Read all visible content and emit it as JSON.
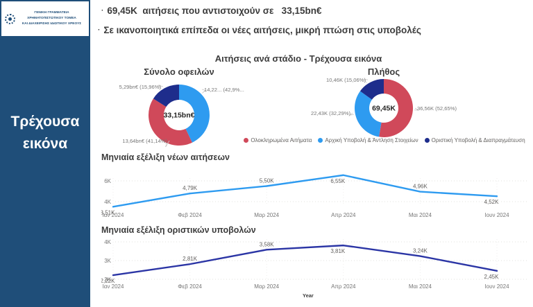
{
  "logo": {
    "line1": "ΓΕΝΙΚΗ ΓΡΑΜΜΑΤΕΙΑ ΧΡΗΜΑΤΟΠΙΣΤΩΤΙΚΟΥ ΤΟΜΕΑ",
    "line2": "ΚΑΙ ΔΙΑΧΕΙΡΙΣΗΣ ΙΔΙΩΤΙΚΟΥ ΧΡΕΟΥΣ"
  },
  "sidebar": {
    "label": "Τρέχουσα εικόνα"
  },
  "header": {
    "bullet1": "69,45K  αιτήσεις που αντιστοιχούν σε   33,15bn€",
    "bullet2": "Σε ικανοποιητικά επίπεδα οι νέες αιτήσεις, μικρή πτώση στις υποβολές"
  },
  "section_title": "Αιτήσεις ανά στάδιο - Τρέχουσα εικόνα",
  "colors": {
    "red": "#D0495A",
    "blue": "#2E9BF0",
    "navy": "#1E2D8C",
    "navy_line": "#2B35A5",
    "sidebar": "#1F4E79",
    "grid": "#E1E0DE",
    "tick": "#757575",
    "data_label": "#605E5C",
    "donut_label": "#767676"
  },
  "legend": [
    {
      "label": "Ολοκληρωμένα Αιτήματα",
      "color": "red"
    },
    {
      "label": "Αρχική Υποβολή & Άντληση Στοιχείων",
      "color": "blue"
    },
    {
      "label": "Οριστική Υποβολή & Διαπραγμάτευση",
      "color": "navy"
    }
  ],
  "chart_data": [
    {
      "type": "pie",
      "title": "Σύνολο οφειλών",
      "center_label": "33,15bn€",
      "legend_position": "bottom-shared",
      "slices": [
        {
          "label": "14,22... (42,9%...",
          "value": 14.22,
          "pct": 42.9,
          "color": "blue",
          "anchor": "top-right"
        },
        {
          "label": "13,64bn€ (41,14%)",
          "value": 13.64,
          "pct": 41.14,
          "color": "red",
          "anchor": "bottom-left"
        },
        {
          "label": "5,29bn€ (15,96%)",
          "value": 5.29,
          "pct": 15.96,
          "color": "navy",
          "anchor": "top-left"
        }
      ]
    },
    {
      "type": "pie",
      "title": "Πλήθος",
      "center_label": "69,45K",
      "legend_position": "bottom-shared",
      "slices": [
        {
          "label": "36,56K (52,65%)",
          "value": 36.56,
          "pct": 52.65,
          "color": "red",
          "anchor": "right"
        },
        {
          "label": "22,43K (32,29%)",
          "value": 22.43,
          "pct": 32.29,
          "color": "blue",
          "anchor": "left"
        },
        {
          "label": "10,46K (15,06%)",
          "value": 10.46,
          "pct": 15.06,
          "color": "navy",
          "anchor": "top-left"
        }
      ]
    },
    {
      "type": "line",
      "title": "Μηνιαία εξέλιξη νέων αιτήσεων",
      "categories": [
        "Ιαν 2024",
        "Φεβ 2024",
        "Μαρ 2024",
        "Απρ 2024",
        "Μαι 2024",
        "Ιουν 2024"
      ],
      "values": [
        3.51,
        4.79,
        5.5,
        6.55,
        4.96,
        4.52
      ],
      "labels": [
        "3,51K",
        "4,79K",
        "5,50K",
        "6,55K",
        "4,96K",
        "4,52K"
      ],
      "label_side": [
        "below",
        "above",
        "above",
        "below",
        "above",
        "below"
      ],
      "yticks": [
        {
          "label": "4K",
          "value": 4
        },
        {
          "label": "6K",
          "value": 6
        }
      ],
      "ylim": [
        3.2,
        6.9
      ],
      "grid": true,
      "color": "blue",
      "xlabel": ""
    },
    {
      "type": "line",
      "title": "Μηνιαία εξέλιξη οριστικών υποβολών",
      "categories": [
        "Ιαν 2024",
        "Φεβ 2024",
        "Μαρ 2024",
        "Απρ 2024",
        "Μαι 2024",
        "Ιουν 2024"
      ],
      "values": [
        2.22,
        2.81,
        3.58,
        3.81,
        3.24,
        2.45
      ],
      "labels": [
        "2,22K",
        "2,81K",
        "3,58K",
        "3,81K",
        "3,24K",
        "2,45K"
      ],
      "label_side": [
        "below",
        "above",
        "above",
        "below",
        "above",
        "below"
      ],
      "yticks": [
        {
          "label": "2K",
          "value": 2
        },
        {
          "label": "3K",
          "value": 3
        },
        {
          "label": "4K",
          "value": 4
        }
      ],
      "ylim": [
        2.0,
        4.2
      ],
      "grid": true,
      "color": "navy_line",
      "xlabel": "Year"
    }
  ]
}
